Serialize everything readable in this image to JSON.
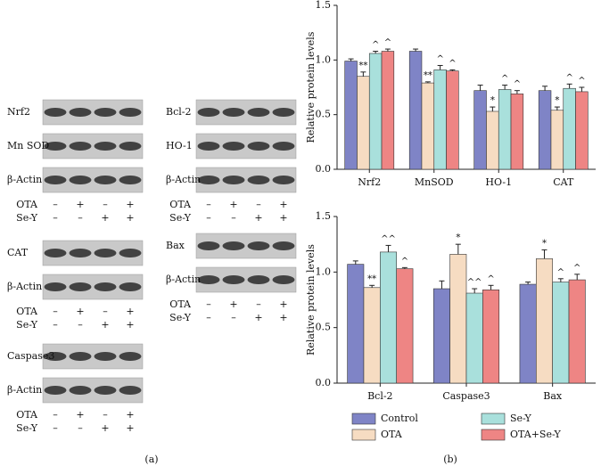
{
  "blots": {
    "columns": [
      {
        "groups": [
          {
            "rows": [
              "Nrf2",
              "Mn SOD",
              "β-Actin"
            ],
            "treatments": [
              {
                "name": "OTA",
                "signs": [
                  "–",
                  "+",
                  "–",
                  "+"
                ]
              },
              {
                "name": "Se-Y",
                "signs": [
                  "–",
                  "–",
                  "+",
                  "+"
                ]
              }
            ]
          },
          {
            "rows": [
              "CAT",
              "β-Actin"
            ],
            "treatments": [
              {
                "name": "OTA",
                "signs": [
                  "–",
                  "+",
                  "–",
                  "+"
                ]
              },
              {
                "name": "Se-Y",
                "signs": [
                  "–",
                  "–",
                  "+",
                  "+"
                ]
              }
            ]
          },
          {
            "rows": [
              "Caspase3",
              "β-Actin"
            ],
            "treatments": [
              {
                "name": "OTA",
                "signs": [
                  "–",
                  "+",
                  "–",
                  "+"
                ]
              },
              {
                "name": "Se-Y",
                "signs": [
                  "–",
                  "–",
                  "+",
                  "+"
                ]
              }
            ]
          }
        ]
      },
      {
        "groups": [
          {
            "rows": [
              "Bcl-2",
              "HO-1",
              "β-Actin"
            ],
            "treatments": [
              {
                "name": "OTA",
                "signs": [
                  "–",
                  "+",
                  "–",
                  "+"
                ]
              },
              {
                "name": "Se-Y",
                "signs": [
                  "–",
                  "–",
                  "+",
                  "+"
                ]
              }
            ]
          },
          {
            "rows": [
              "Bax",
              "β-Actin"
            ],
            "treatments": [
              {
                "name": "OTA",
                "signs": [
                  "–",
                  "+",
                  "–",
                  "+"
                ]
              },
              {
                "name": "Se-Y",
                "signs": [
                  "–",
                  "–",
                  "+",
                  "+"
                ]
              }
            ]
          }
        ]
      }
    ]
  },
  "panel_labels": [
    "(a)",
    "(b)"
  ],
  "chart_data": [
    {
      "type": "bar",
      "y_label": "Relative protein levels",
      "categories": [
        "Nrf2",
        "MnSOD",
        "HO-1",
        "CAT"
      ],
      "ylim": [
        0,
        1.5
      ],
      "yticks": [
        {
          "value": 0,
          "label": "0.0"
        },
        {
          "value": 0.5,
          "label": "0.5"
        },
        {
          "value": 1,
          "label": "1.0"
        },
        {
          "value": 1.5,
          "label": "1.5"
        }
      ],
      "series": [
        {
          "name": "Control",
          "color": "#7f84c6",
          "values": [
            0.99,
            1.08,
            0.72,
            0.72
          ],
          "errors": [
            0.02,
            0.02,
            0.05,
            0.04
          ],
          "markers": [
            null,
            null,
            null,
            null
          ]
        },
        {
          "name": "OTA",
          "color": "#f6dcc2",
          "values": [
            0.85,
            0.79,
            0.53,
            0.54
          ],
          "errors": [
            0.04,
            0.01,
            0.04,
            0.03
          ],
          "markers": [
            "**",
            "**",
            "*",
            "*"
          ]
        },
        {
          "name": "Se-Y",
          "color": "#a9e0dc",
          "values": [
            1.06,
            0.91,
            0.73,
            0.74
          ],
          "errors": [
            0.02,
            0.04,
            0.04,
            0.04
          ],
          "markers": [
            "^",
            "^",
            "^",
            "^"
          ]
        },
        {
          "name": "OTA+Se-Y",
          "color": "#ee8584",
          "values": [
            1.08,
            0.9,
            0.69,
            0.71
          ],
          "errors": [
            0.02,
            0.01,
            0.03,
            0.04
          ],
          "markers": [
            "^",
            "^",
            "^",
            "^"
          ]
        }
      ]
    },
    {
      "type": "bar",
      "y_label": "Relative protein levels",
      "categories": [
        "Bcl-2",
        "Caspase3",
        "Bax"
      ],
      "ylim": [
        0,
        1.5
      ],
      "yticks": [
        {
          "value": 0,
          "label": "0.0"
        },
        {
          "value": 0.5,
          "label": "0.5"
        },
        {
          "value": 1,
          "label": "1.0"
        },
        {
          "value": 1.5,
          "label": "1.5"
        }
      ],
      "series": [
        {
          "name": "Control",
          "color": "#7f84c6",
          "values": [
            1.07,
            0.85,
            0.89
          ],
          "errors": [
            0.03,
            0.07,
            0.02
          ],
          "markers": [
            null,
            null,
            null
          ]
        },
        {
          "name": "OTA",
          "color": "#f6dcc2",
          "values": [
            0.86,
            1.16,
            1.12
          ],
          "errors": [
            0.02,
            0.09,
            0.08
          ],
          "markers": [
            "**",
            "*",
            "*"
          ]
        },
        {
          "name": "Se-Y",
          "color": "#a9e0dc",
          "values": [
            1.18,
            0.81,
            0.91
          ],
          "errors": [
            0.06,
            0.04,
            0.03
          ],
          "markers": [
            "^^",
            "^^",
            "^"
          ]
        },
        {
          "name": "OTA+Se-Y",
          "color": "#ee8584",
          "values": [
            1.03,
            0.84,
            0.93
          ],
          "errors": [
            0.01,
            0.04,
            0.05
          ],
          "markers": [
            "^",
            "^",
            "^"
          ]
        }
      ]
    }
  ]
}
